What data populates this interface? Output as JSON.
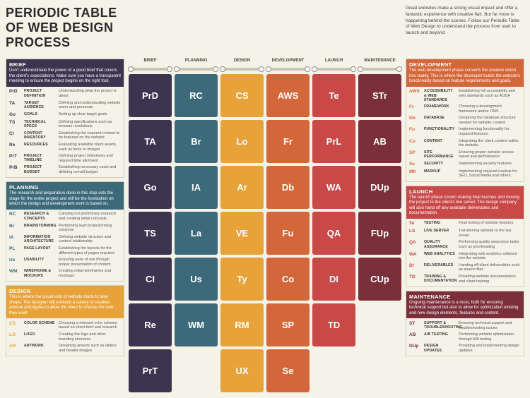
{
  "title": "PERIODIC TABLE OF WEB DESIGN PROCESS",
  "intro": "Great websites make a strong visual impact and offer a fantastic experience with creative flair. But far more is happening behind the scenes. Follow our Periodic Table of Web Design to understand the process from start to launch and beyond.",
  "colors": {
    "brief": "#3d3450",
    "planning": "#3d6a7a",
    "design": "#e8a23a",
    "development": "#d4673a",
    "launch": "#c94848",
    "maintenance": "#7a2f3a",
    "bg": "#f5f2e8"
  },
  "phases": [
    "BRIEF",
    "PLANNING",
    "DESIGN",
    "DEVELOPMENT",
    "LAUNCH",
    "MAINTENANCE"
  ],
  "grid": [
    [
      "PrD",
      "RC",
      "CS",
      "AWS",
      "Te",
      "STr"
    ],
    [
      "TA",
      "Br",
      "Lo",
      "Fr",
      "PrL",
      "AB"
    ],
    [
      "Go",
      "IA",
      "Ar",
      "Db",
      "WA",
      "DUp"
    ],
    [
      "TS",
      "La",
      "VE",
      "Fu",
      "QA",
      "FUp"
    ],
    [
      "CI",
      "Us",
      "Ty",
      "Co",
      "DI",
      "CUp"
    ],
    [
      "Re",
      "WM",
      "RM",
      "SP",
      "TD",
      ""
    ],
    [
      "PrT",
      "",
      "UX",
      "Se",
      "",
      ""
    ]
  ],
  "gridColors": [
    [
      "brief",
      "planning",
      "design",
      "development",
      "launch",
      "maintenance"
    ],
    [
      "brief",
      "planning",
      "design",
      "development",
      "launch",
      "maintenance"
    ],
    [
      "brief",
      "planning",
      "design",
      "development",
      "launch",
      "maintenance"
    ],
    [
      "brief",
      "planning",
      "design",
      "development",
      "launch",
      "maintenance"
    ],
    [
      "brief",
      "planning",
      "design",
      "development",
      "launch",
      "maintenance"
    ],
    [
      "brief",
      "planning",
      "design",
      "development",
      "launch",
      ""
    ],
    [
      "brief",
      "",
      "design",
      "development",
      "",
      ""
    ]
  ],
  "sections": {
    "brief": {
      "name": "BRIEF",
      "blurb": "Don't underestimate the power of a good brief that covers the client's expectations. Make sure you have a transparent meeting to ensure the project begins on the right foot.",
      "items": [
        {
          "sym": "PrD",
          "lbl": "PROJECT DEFINITION",
          "desc": "Understanding what the project is about"
        },
        {
          "sym": "TA",
          "lbl": "TARGET AUDIENCE",
          "desc": "Defining and understanding website users and personas"
        },
        {
          "sym": "Go",
          "lbl": "GOALS",
          "desc": "Setting up clear target goals"
        },
        {
          "sym": "TS",
          "lbl": "TECHNICAL SPECS",
          "desc": "Defining specifications such as browser resolutions"
        },
        {
          "sym": "CI",
          "lbl": "CONTENT INVENTORY",
          "desc": "Establishing the required content to be featured on the website"
        },
        {
          "sym": "Re",
          "lbl": "RESOURCES",
          "desc": "Evaluating available client assets, such as fonts or images"
        },
        {
          "sym": "PrT",
          "lbl": "PROJECT TIMELINE",
          "desc": "Defining project milestones and required time allotment"
        },
        {
          "sym": "PrB",
          "lbl": "PROJECT BUDGET",
          "desc": "Establishing necessary costs and defining overall budget"
        }
      ]
    },
    "planning": {
      "name": "PLANNING",
      "blurb": "The research and preparation done in this step sets the stage for the entire project and will be the foundation on which the design and development work is based on.",
      "items": [
        {
          "sym": "RC",
          "lbl": "RESEARCH & CONCEPTS",
          "desc": "Carrying out preliminary research and creating initial concepts"
        },
        {
          "sym": "Br",
          "lbl": "BRAINSTORMING",
          "desc": "Performing team brainstorming sessions"
        },
        {
          "sym": "IA",
          "lbl": "INFORMATION ARCHITECTURE",
          "desc": "Defining website structure and content relationship"
        },
        {
          "sym": "PL",
          "lbl": "PAGE LAYOUT",
          "desc": "Establishing the layouts for the different types of pages required"
        },
        {
          "sym": "Us",
          "lbl": "USABILITY",
          "desc": "Ensuring ease of use through proper presentation of content"
        },
        {
          "sym": "WM",
          "lbl": "WIREFRAME & MOCKUPS",
          "desc": "Creating initial wireframes and mockups"
        }
      ]
    },
    "design": {
      "name": "DESIGN",
      "blurb": "This is where the visual look of website starts to take shape. The designer will envision a variety of creative artwork prototypes to allow the client to choose the look they want.",
      "items": [
        {
          "sym": "CS",
          "lbl": "COLOR SCHEME",
          "desc": "Choosing a relevant color scheme based on client brief and research"
        },
        {
          "sym": "LO",
          "lbl": "LOGO",
          "desc": "Creating the logo and other branding elements"
        },
        {
          "sym": "AR",
          "lbl": "ARTWORK",
          "desc": "Designing artwork such as sliders and header images"
        }
      ]
    },
    "development": {
      "name": "DEVELOPMENT",
      "blurb": "The web development phase converts the creative vision into reality. This is where the developer builds the website's functionality based on feature requirements and goals.",
      "items": [
        {
          "sym": "AWS",
          "lbl": "ACCESSIBILITY & WEB STANDARDS",
          "desc": "Establishing full accessibility and web standards such as AODA"
        },
        {
          "sym": "Fr",
          "lbl": "FRAMEWORK",
          "desc": "Choosing a development framework and/or CMS"
        },
        {
          "sym": "Db",
          "lbl": "DATABASE",
          "desc": "Designing the database structure needed for website content"
        },
        {
          "sym": "Fu",
          "lbl": "FUNCTIONALITY",
          "desc": "Implementing functionality for required features"
        },
        {
          "sym": "Co",
          "lbl": "CONTENT",
          "desc": "Integrating the client content within the website"
        },
        {
          "sym": "SP",
          "lbl": "SITE PERFORMANCE",
          "desc": "Ensuring proper website access speed and performance"
        },
        {
          "sym": "Se",
          "lbl": "SECURITY",
          "desc": "Implementing security features"
        },
        {
          "sym": "MK",
          "lbl": "MARKUP",
          "desc": "Implementing required markup for SEO, Social Media and others"
        }
      ]
    },
    "launch": {
      "name": "LAUNCH",
      "blurb": "The launch phase covers making final touches and moving the project to the client's live server. The design company will also hand off any available deliverables and documentation.",
      "items": [
        {
          "sym": "Te",
          "lbl": "TESTING",
          "desc": "Final testing of website features"
        },
        {
          "sym": "LS",
          "lbl": "LIVE SERVER",
          "desc": "Transferring website to the live server"
        },
        {
          "sym": "QA",
          "lbl": "QUALITY ASSURANCE",
          "desc": "Performing quality assurance tasks such as proofreading"
        },
        {
          "sym": "WA",
          "lbl": "WEB ANALYTICS",
          "desc": "Integrating web analytics software into the website"
        },
        {
          "sym": "DI",
          "lbl": "DELIVERABLES",
          "desc": "Handing off client deliverables such as source files"
        },
        {
          "sym": "TD",
          "lbl": "TRAINING & DOCUMENTATION",
          "desc": "Providing website documentation and client training"
        }
      ]
    },
    "maintenance": {
      "name": "MAINTENANCE",
      "blurb": "Ongoing maintenance is a must, both for ensuring technical support but also to allow for optimization existing and new design elements, features and content.",
      "items": [
        {
          "sym": "ST",
          "lbl": "SUPPORT & TROUBLESHOOTING",
          "desc": "Ensuring technical support and troubleshooting issues"
        },
        {
          "sym": "AB",
          "lbl": "A/B TESTING",
          "desc": "Performing website optimization through A/B testing"
        },
        {
          "sym": "DUp",
          "lbl": "DESIGN UPDATES",
          "desc": "Providing and implementing design updates"
        }
      ]
    }
  }
}
